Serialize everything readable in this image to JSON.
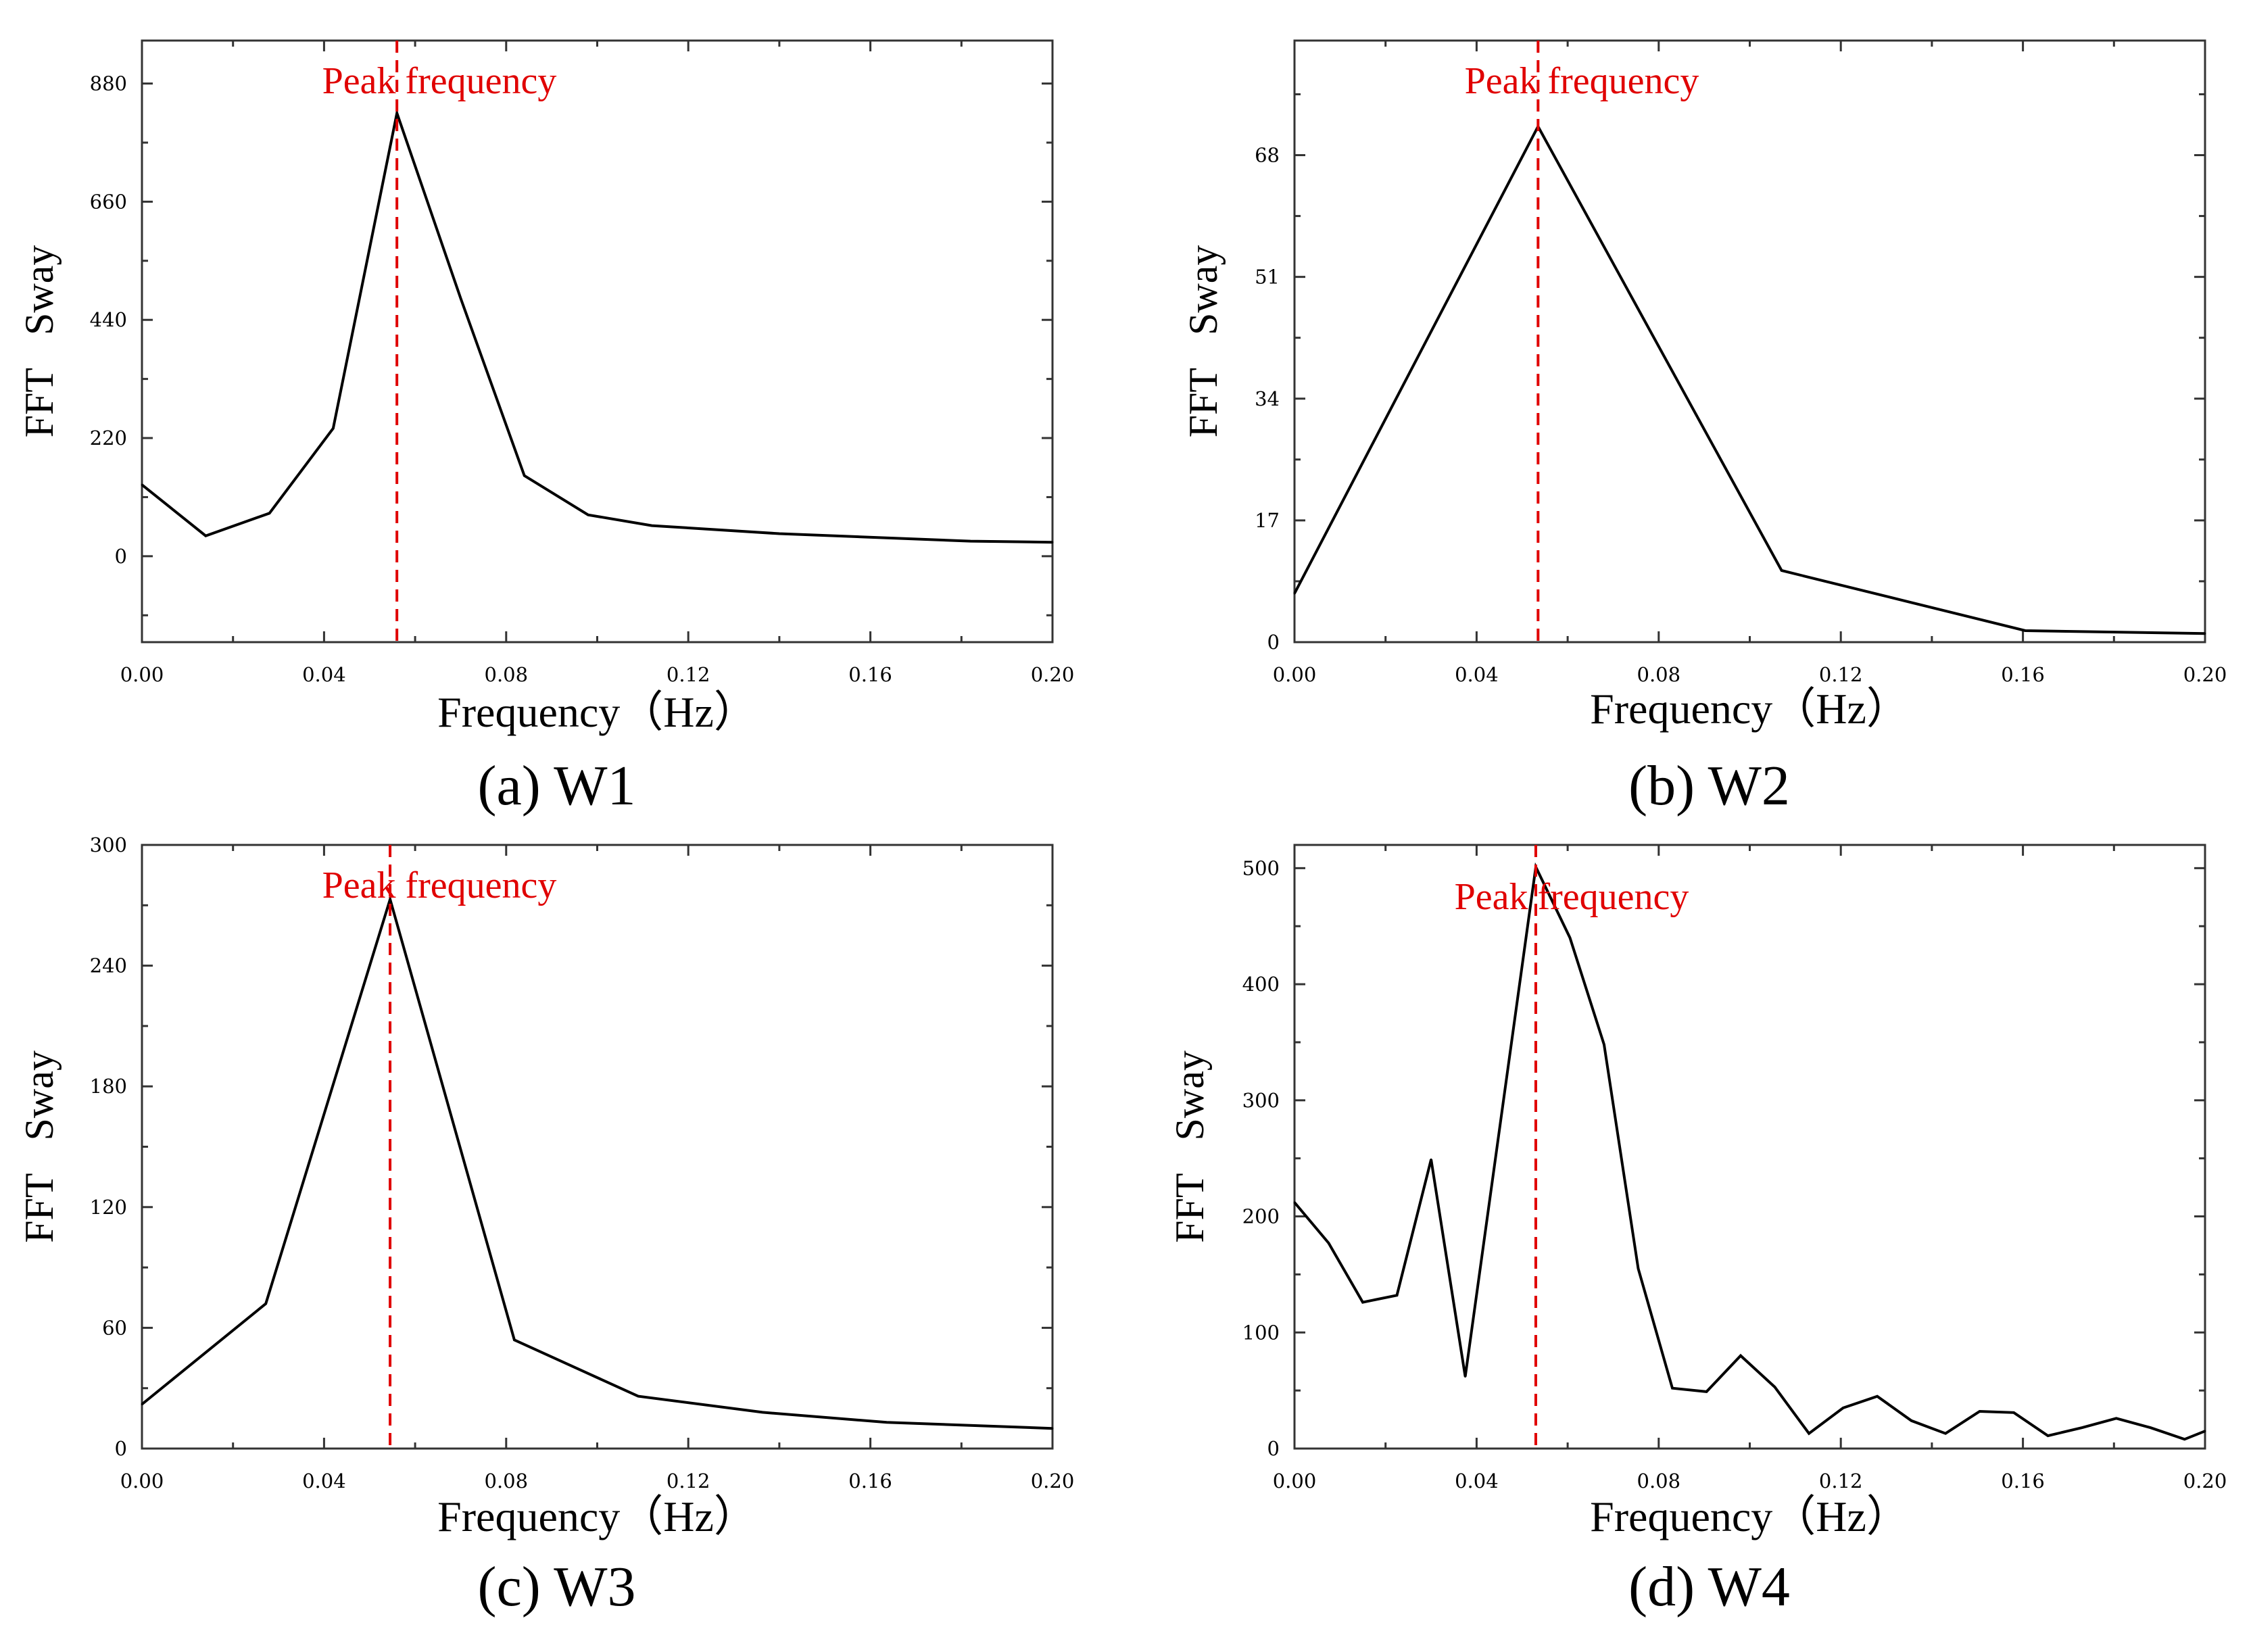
{
  "colors": {
    "line": "#000000",
    "peak_line": "#e00000",
    "frame": "#333333"
  },
  "chart_data": [
    {
      "type": "line",
      "caption": "(a)  W1",
      "xlabel": "Frequency（Hz）",
      "ylabel_parts": [
        "FFT",
        "Sway"
      ],
      "annotation": "Peak frequency",
      "peak_x": 0.056,
      "xlim": [
        0,
        0.2
      ],
      "ylim": [
        -160,
        960
      ],
      "x_ticks": [
        0,
        0.04,
        0.08,
        0.12,
        0.16,
        0.2
      ],
      "x_tick_labels": [
        "0.00",
        "0.04",
        "0.08",
        "0.12",
        "0.16",
        "0.20"
      ],
      "y_ticks": [
        0,
        220,
        440,
        660,
        880
      ],
      "y_tick_labels": [
        "0",
        "220",
        "440",
        "660",
        "880"
      ],
      "series": [
        {
          "name": "W1",
          "x": [
            0,
            0.014,
            0.028,
            0.042,
            0.056,
            0.07,
            0.084,
            0.098,
            0.112,
            0.14,
            0.182,
            0.2
          ],
          "y": [
            133,
            38,
            80,
            238,
            825,
            480,
            150,
            77,
            57,
            42,
            28,
            26
          ]
        }
      ]
    },
    {
      "type": "line",
      "caption": "(b)  W2",
      "xlabel": "Frequency（Hz）",
      "ylabel_parts": [
        "FFT",
        "Sway"
      ],
      "annotation": "Peak frequency",
      "peak_x": 0.0535,
      "xlim": [
        0,
        0.2
      ],
      "ylim": [
        0,
        84
      ],
      "x_ticks": [
        0,
        0.04,
        0.08,
        0.12,
        0.16,
        0.2
      ],
      "x_tick_labels": [
        "0.00",
        "0.04",
        "0.08",
        "0.12",
        "0.16",
        "0.20"
      ],
      "y_ticks": [
        0,
        17,
        34,
        51,
        68
      ],
      "y_tick_labels": [
        "0",
        "17",
        "34",
        "51",
        "68"
      ],
      "series": [
        {
          "name": "W2",
          "x": [
            0,
            0.0535,
            0.107,
            0.1605,
            0.2
          ],
          "y": [
            6.8,
            72,
            10,
            1.6,
            1.2
          ]
        }
      ]
    },
    {
      "type": "line",
      "caption": "(c)  W3",
      "xlabel": "Frequency（Hz）",
      "ylabel_parts": [
        "FFT",
        "Sway"
      ],
      "annotation": "Peak frequency",
      "peak_x": 0.0545,
      "xlim": [
        0,
        0.2
      ],
      "ylim": [
        0,
        300
      ],
      "x_ticks": [
        0,
        0.04,
        0.08,
        0.12,
        0.16,
        0.2
      ],
      "x_tick_labels": [
        "0.00",
        "0.04",
        "0.08",
        "0.12",
        "0.16",
        "0.20"
      ],
      "y_ticks": [
        0,
        60,
        120,
        180,
        240,
        300
      ],
      "y_tick_labels": [
        "0",
        "60",
        "120",
        "180",
        "240",
        "300"
      ],
      "series": [
        {
          "name": "W3",
          "x": [
            0,
            0.0272,
            0.0545,
            0.0818,
            0.109,
            0.1363,
            0.1636,
            0.2
          ],
          "y": [
            22,
            72,
            273,
            54,
            26,
            18,
            13,
            10
          ]
        }
      ]
    },
    {
      "type": "line",
      "caption": "(d)  W4",
      "xlabel": "Frequency（Hz）",
      "ylabel_parts": [
        "FFT",
        "Sway"
      ],
      "annotation": "Peak frequency",
      "peak_x": 0.053,
      "xlim": [
        0,
        0.2
      ],
      "ylim": [
        0,
        520
      ],
      "x_ticks": [
        0,
        0.04,
        0.08,
        0.12,
        0.16,
        0.2
      ],
      "x_tick_labels": [
        "0.00",
        "0.04",
        "0.08",
        "0.12",
        "0.16",
        "0.20"
      ],
      "y_ticks": [
        0,
        100,
        200,
        300,
        400,
        500
      ],
      "y_tick_labels": [
        "0",
        "100",
        "200",
        "300",
        "400",
        "500"
      ],
      "series": [
        {
          "name": "W4",
          "x": [
            0,
            0.0075,
            0.015,
            0.0225,
            0.03,
            0.0375,
            0.053,
            0.0605,
            0.068,
            0.0755,
            0.083,
            0.0905,
            0.098,
            0.1055,
            0.113,
            0.1205,
            0.128,
            0.1355,
            0.143,
            0.1505,
            0.158,
            0.1655,
            0.173,
            0.1805,
            0.188,
            0.1955,
            0.2
          ],
          "y": [
            212,
            177,
            126,
            132,
            249,
            62,
            501,
            440,
            348,
            155,
            52,
            49,
            80,
            53,
            13,
            35,
            45,
            24,
            13,
            32,
            31,
            11,
            18,
            26,
            18,
            8,
            15
          ]
        }
      ]
    }
  ]
}
